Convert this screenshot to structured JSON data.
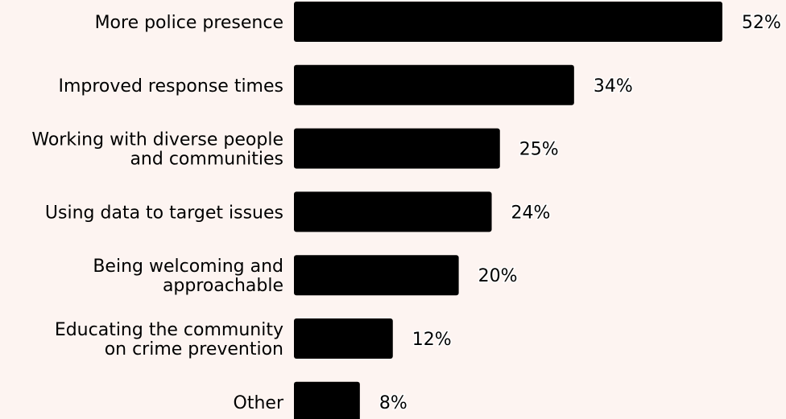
{
  "chart_data": {
    "type": "bar",
    "orientation": "horizontal",
    "categories": [
      [
        "More police presence"
      ],
      [
        "Improved response times"
      ],
      [
        "Working with diverse people",
        "and communities"
      ],
      [
        "Using data to target issues"
      ],
      [
        "Being welcoming and",
        "approachable"
      ],
      [
        "Educating the community",
        "on crime prevention"
      ],
      [
        "Other"
      ]
    ],
    "values": [
      52,
      34,
      25,
      24,
      20,
      12,
      8
    ],
    "value_labels": [
      "52%",
      "34%",
      "25%",
      "24%",
      "20%",
      "12%",
      "8%"
    ],
    "title": "",
    "xlabel": "",
    "ylabel": "",
    "xlim": [
      0,
      52
    ],
    "grid": false,
    "legend": "none",
    "bar_color": "#000000",
    "background_color": "#fdf4f1"
  }
}
